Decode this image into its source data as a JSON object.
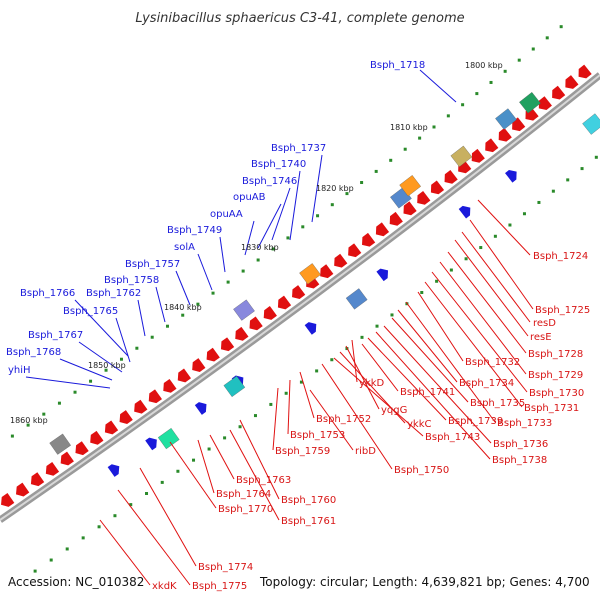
{
  "title": "Lysinibacillus sphaericus C3-41, complete genome",
  "footer": {
    "accession": "Accession: NC_010382",
    "summary": "Topology: circular; Length: 4,639,821 bp; Genes: 4,700"
  },
  "kbp_ticks": [
    "1800 kbp",
    "1810 kbp",
    "1820 kbp",
    "1830 kbp",
    "1840 kbp",
    "1850 kbp",
    "1860 kbp"
  ],
  "blue_labels": [
    "Bsph_1718",
    "Bsph_1737",
    "Bsph_1740",
    "Bsph_1746",
    "opuAB",
    "opuAA",
    "Bsph_1749",
    "solA",
    "Bsph_1757",
    "Bsph_1758",
    "Bsph_1766",
    "Bsph_1762",
    "Bsph_1765",
    "Bsph_1767",
    "Bsph_1768",
    "yhiH"
  ],
  "red_labels": [
    "Bsph_1724",
    "Bsph_1725",
    "resD",
    "resE",
    "Bsph_1728",
    "Bsph_1729",
    "Bsph_1730",
    "Bsph_1731",
    "Bsph_1732",
    "Bsph_1733",
    "Bsph_1734",
    "Bsph_1735",
    "Bsph_1736",
    "Bsph_1738",
    "Bsph_1739",
    "Bsph_1741",
    "ykkD",
    "yqgG",
    "ykkC",
    "Bsph_1743",
    "Bsph_1750",
    "Bsph_1752",
    "Bsph_1753",
    "Bsph_1759",
    "ribD",
    "Bsph_1760",
    "Bsph_1761",
    "Bsph_1763",
    "Bsph_1764",
    "Bsph_1770",
    "Bsph_1774",
    "Bsph_1775",
    "xkdK"
  ],
  "colors": {
    "forward_gene": "#1a1adb",
    "reverse_gene": "#e01010",
    "backbone": "#888888",
    "tick": "#2a8a2a"
  }
}
